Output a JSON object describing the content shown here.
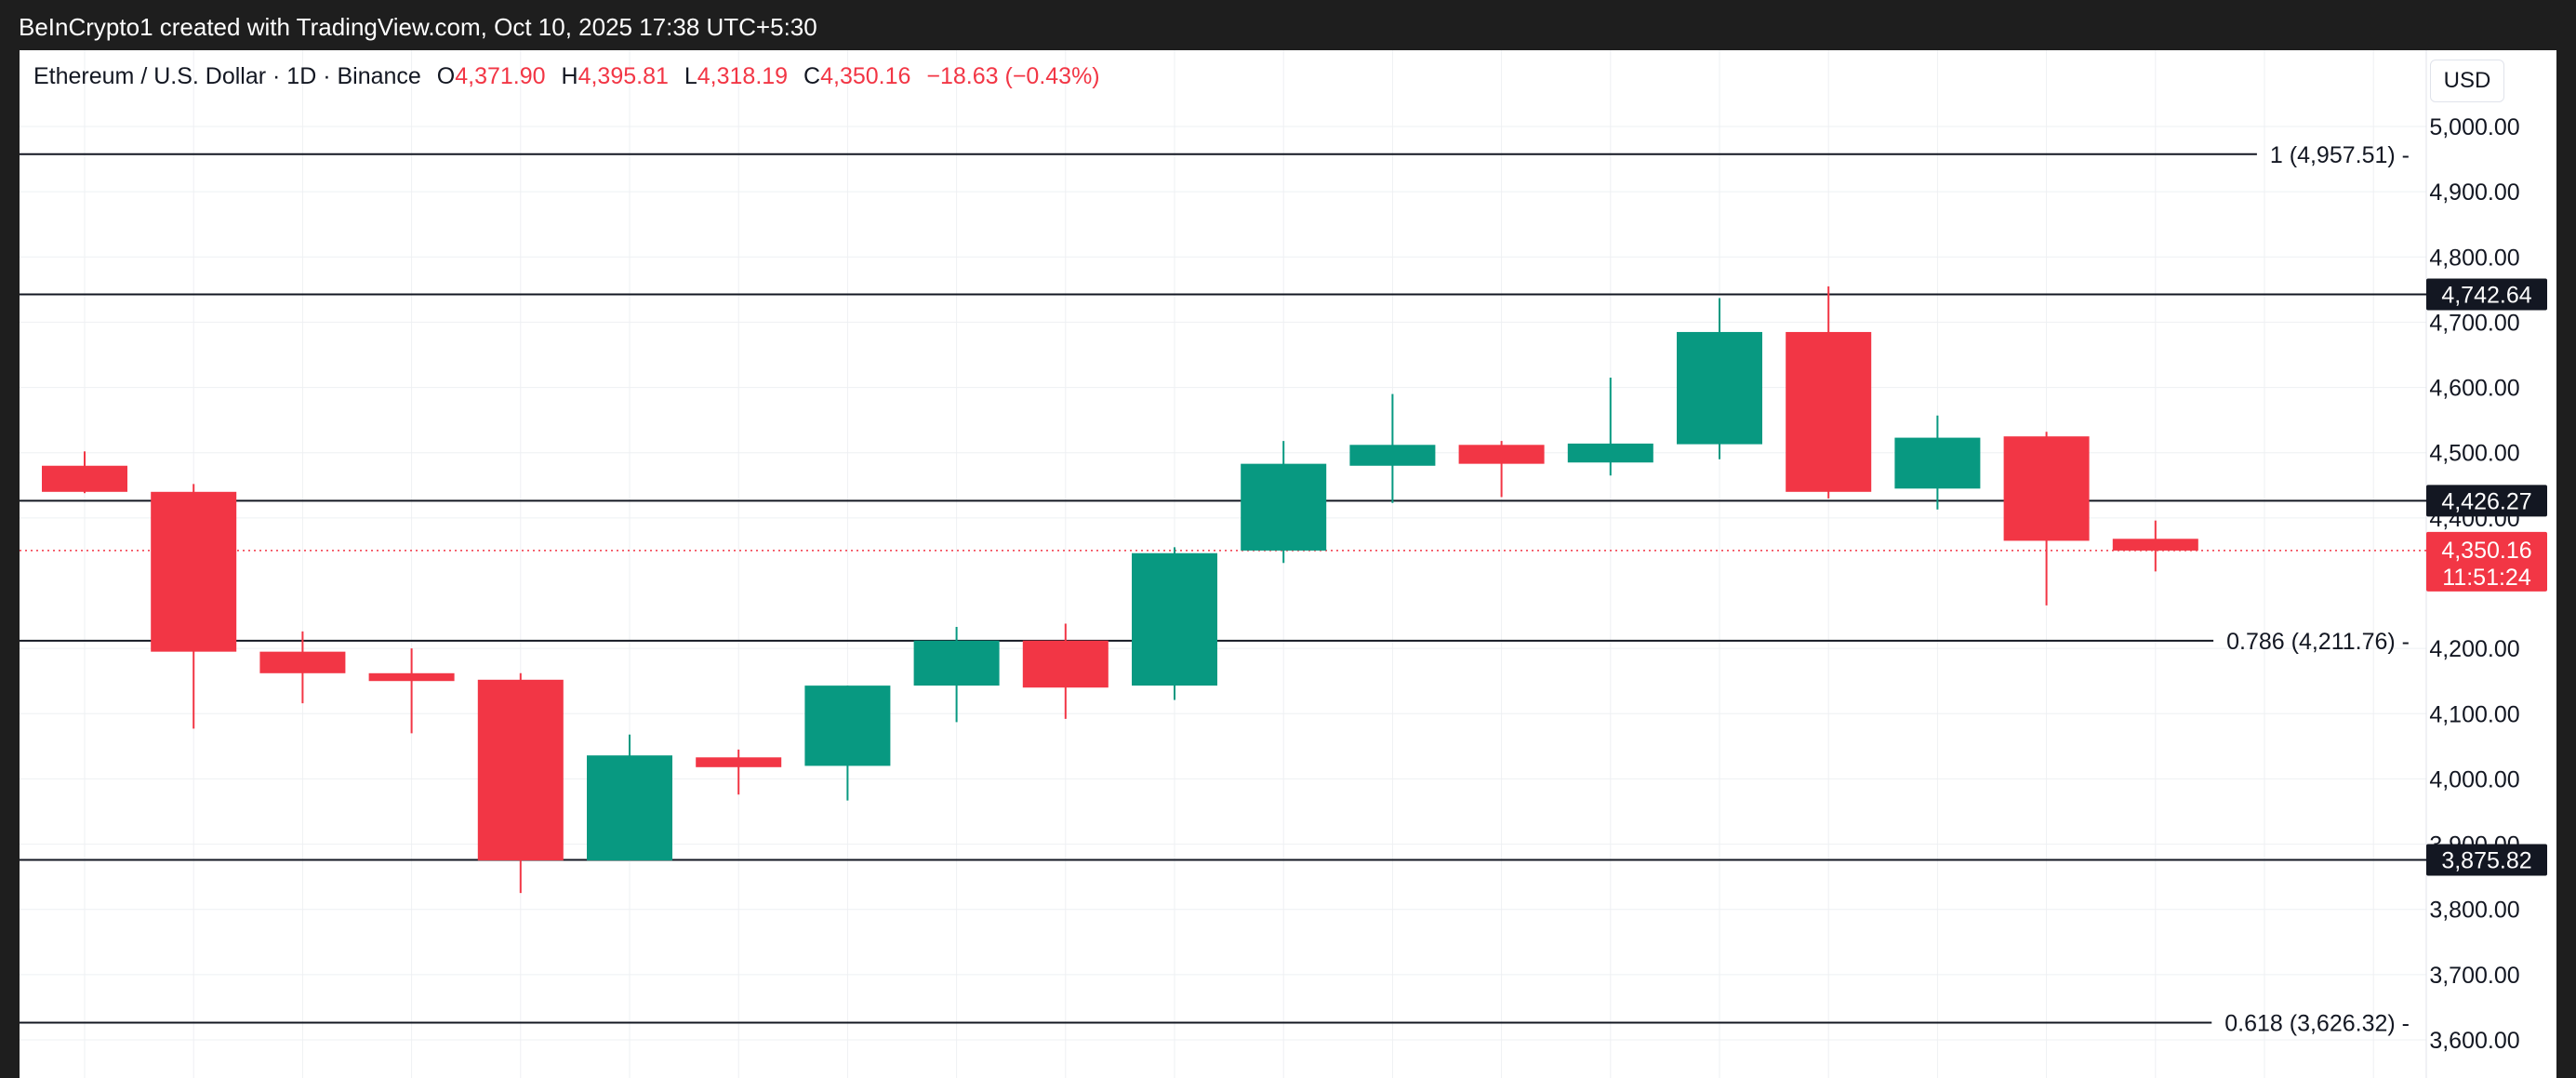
{
  "header": {
    "attribution": "BeInCrypto1 created with TradingView.com, Oct 10, 2025 17:38 UTC+5:30"
  },
  "legend": {
    "symbol": "Ethereum / U.S. Dollar · 1D · Binance",
    "open_label": "O",
    "open_value": "4,371.90",
    "high_label": "H",
    "high_value": "4,395.81",
    "low_label": "L",
    "low_value": "4,318.19",
    "close_label": "C",
    "close_value": "4,350.16",
    "change": "−18.63 (−0.43%)"
  },
  "toolbar": {
    "currency_label": "USD"
  },
  "colors": {
    "up": "#089981",
    "down": "#f23645",
    "grid": "#eef0f3",
    "line": "#131722",
    "label_bg": "#131722"
  },
  "chart_data": {
    "type": "candlestick",
    "y_axis_range": [
      3570,
      5050
    ],
    "y_ticks": [
      {
        "value": 5000,
        "label": "5,000.00"
      },
      {
        "value": 4900,
        "label": "4,900.00"
      },
      {
        "value": 4800,
        "label": "4,800.00"
      },
      {
        "value": 4700,
        "label": "4,700.00"
      },
      {
        "value": 4600,
        "label": "4,600.00"
      },
      {
        "value": 4500,
        "label": "4,500.00"
      },
      {
        "value": 4400,
        "label": "4,400.00"
      },
      {
        "value": 4200,
        "label": "4,200.00"
      },
      {
        "value": 4100,
        "label": "4,100.00"
      },
      {
        "value": 4000,
        "label": "4,000.00"
      },
      {
        "value": 3900,
        "label": "3,900.00"
      },
      {
        "value": 3800,
        "label": "3,800.00"
      },
      {
        "value": 3700,
        "label": "3,700.00"
      },
      {
        "value": 3600,
        "label": "3,600.00"
      }
    ],
    "candles": [
      {
        "open": 4480,
        "high": 4502,
        "low": 4438,
        "close": 4440
      },
      {
        "open": 4440,
        "high": 4452,
        "low": 4077,
        "close": 4195
      },
      {
        "open": 4195,
        "high": 4226,
        "low": 4116,
        "close": 4162
      },
      {
        "open": 4162,
        "high": 4200,
        "low": 4070,
        "close": 4150
      },
      {
        "open": 4152,
        "high": 4162,
        "low": 3825,
        "close": 3875
      },
      {
        "open": 3875,
        "high": 4068,
        "low": 3875,
        "close": 4036
      },
      {
        "open": 4033,
        "high": 4045,
        "low": 3976,
        "close": 4018
      },
      {
        "open": 4020,
        "high": 4143,
        "low": 3967,
        "close": 4143
      },
      {
        "open": 4143,
        "high": 4233,
        "low": 4087,
        "close": 4212
      },
      {
        "open": 4212,
        "high": 4238,
        "low": 4092,
        "close": 4140
      },
      {
        "open": 4143,
        "high": 4355,
        "low": 4121,
        "close": 4346
      },
      {
        "open": 4350,
        "high": 4518,
        "low": 4331,
        "close": 4483
      },
      {
        "open": 4480,
        "high": 4590,
        "low": 4423,
        "close": 4512
      },
      {
        "open": 4512,
        "high": 4518,
        "low": 4432,
        "close": 4483
      },
      {
        "open": 4485,
        "high": 4615,
        "low": 4465,
        "close": 4514
      },
      {
        "open": 4513,
        "high": 4737,
        "low": 4490,
        "close": 4685
      },
      {
        "open": 4685,
        "high": 4755,
        "low": 4430,
        "close": 4440
      },
      {
        "open": 4445,
        "high": 4557,
        "low": 4413,
        "close": 4523
      },
      {
        "open": 4525,
        "high": 4532,
        "low": 4266,
        "close": 4365
      },
      {
        "open": 4368,
        "high": 4396,
        "low": 4318,
        "close": 4350
      }
    ],
    "horizontal_lines": [
      {
        "value": 4957.51,
        "label": "1 (4,957.51)",
        "style": "fib-text"
      },
      {
        "value": 4742.64,
        "label": "4,742.64",
        "style": "axis-badge"
      },
      {
        "value": 4426.27,
        "label": "4,426.27",
        "style": "axis-badge"
      },
      {
        "value": 4211.76,
        "label": "0.786 (4,211.76)",
        "style": "fib-text"
      },
      {
        "value": 3875.82,
        "label": "3,875.82",
        "style": "axis-badge"
      },
      {
        "value": 3626.32,
        "label": "0.618 (3,626.32)",
        "style": "fib-text"
      }
    ],
    "last_price": {
      "value": 4350.16,
      "label": "4,350.16",
      "countdown": "11:51:24"
    }
  }
}
